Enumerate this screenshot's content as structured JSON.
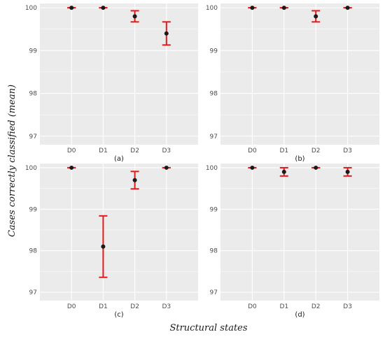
{
  "figure": {
    "xlabel": "Structural states",
    "ylabel": "Cases correctly classified (mean)"
  },
  "colors": {
    "panel_background": "#ebebeb",
    "grid": "#ffffff",
    "point": "#1a1a1a",
    "errorbar": "#e41a1c"
  },
  "chart_data": [
    {
      "type": "scatter",
      "label": "(a)",
      "categories": [
        "D0",
        "D1",
        "D2",
        "D3"
      ],
      "values": [
        100,
        100,
        99.8,
        99.4
      ],
      "error_low": [
        100,
        100,
        99.67,
        99.13
      ],
      "error_high": [
        100,
        100,
        99.93,
        99.67
      ],
      "ylim": [
        96.8,
        100.1
      ],
      "yticks": [
        97,
        98,
        99,
        100
      ]
    },
    {
      "type": "scatter",
      "label": "(b)",
      "categories": [
        "D0",
        "D1",
        "D2",
        "D3"
      ],
      "values": [
        100,
        100,
        99.8,
        100
      ],
      "error_low": [
        100,
        100,
        99.67,
        100
      ],
      "error_high": [
        100,
        100,
        99.93,
        100
      ],
      "ylim": [
        96.8,
        100.1
      ],
      "yticks": [
        97,
        98,
        99,
        100
      ]
    },
    {
      "type": "scatter",
      "label": "(c)",
      "categories": [
        "D0",
        "D1",
        "D2",
        "D3"
      ],
      "values": [
        100,
        98.1,
        99.7,
        100
      ],
      "error_low": [
        100,
        97.36,
        99.49,
        100
      ],
      "error_high": [
        100,
        98.84,
        99.91,
        100
      ],
      "ylim": [
        96.8,
        100.1
      ],
      "yticks": [
        97,
        98,
        99,
        100
      ]
    },
    {
      "type": "scatter",
      "label": "(d)",
      "categories": [
        "D0",
        "D1",
        "D2",
        "D3"
      ],
      "values": [
        100,
        99.9,
        100,
        99.9
      ],
      "error_low": [
        100,
        99.8,
        100,
        99.8
      ],
      "error_high": [
        100,
        100,
        100,
        100
      ],
      "ylim": [
        96.8,
        100.1
      ],
      "yticks": [
        97,
        98,
        99,
        100
      ]
    }
  ]
}
